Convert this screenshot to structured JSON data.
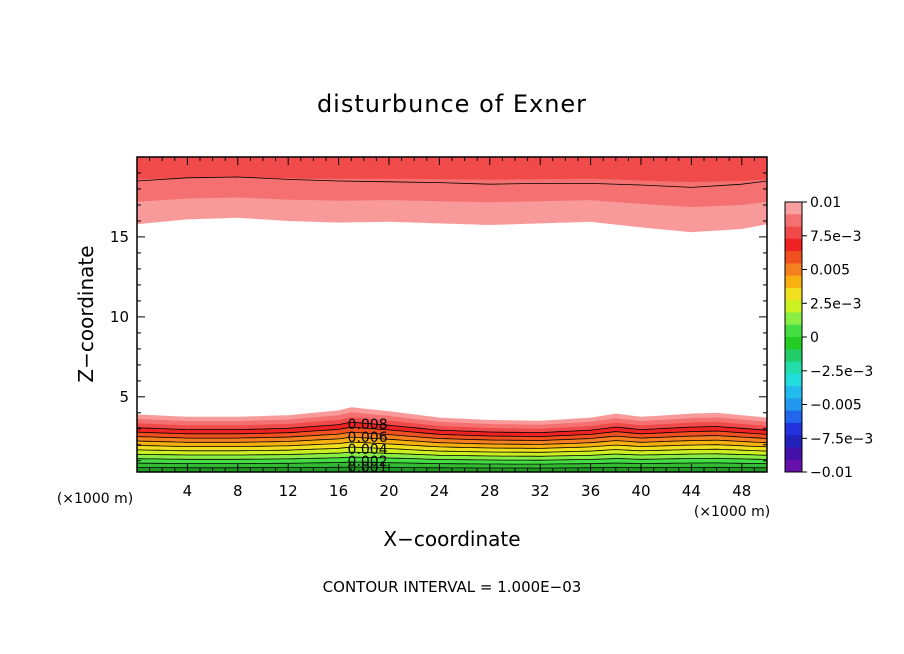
{
  "chart_data": {
    "type": "contour",
    "title": "disturbunce of Exner",
    "xlabel": "X−coordinate",
    "ylabel": "Z−coordinate",
    "x_unit": "(×1000 m)",
    "xlim": [
      0,
      50
    ],
    "ylim": [
      0.3,
      20
    ],
    "x_ticks": [
      4,
      8,
      12,
      16,
      20,
      24,
      28,
      32,
      36,
      40,
      44,
      48
    ],
    "y_ticks": [
      5,
      10,
      15
    ],
    "contour_interval_text": "CONTOUR INTERVAL = 1.000E−03",
    "contour_labels": [
      {
        "text": "0.008",
        "x": 18.3,
        "z": 3.3
      },
      {
        "text": "0.006",
        "x": 18.3,
        "z": 2.5
      },
      {
        "text": "0.004",
        "x": 18.3,
        "z": 1.75
      },
      {
        "text": "0.002",
        "x": 18.3,
        "z": 1.0
      },
      {
        "text": "0.001",
        "x": 18.3,
        "z": 0.6
      }
    ],
    "lower_layer": {
      "base_z": 0.3,
      "top_z_profile": {
        "x": [
          0,
          4,
          8,
          12,
          16,
          17,
          20,
          24,
          28,
          32,
          36,
          38,
          40,
          44,
          46,
          48,
          50
        ],
        "z": [
          3.9,
          3.75,
          3.75,
          3.85,
          4.15,
          4.35,
          4.1,
          3.7,
          3.55,
          3.5,
          3.7,
          3.95,
          3.75,
          3.95,
          4.0,
          3.85,
          3.7
        ]
      },
      "bands_bottom_to_top": [
        "#229922",
        "#33bb33",
        "#44dd44",
        "#88ee44",
        "#ccf022",
        "#f0e020",
        "#f8b010",
        "#f58020",
        "#f05020",
        "#ee2222",
        "#f04a4a",
        "#f57070",
        "#f89a9a"
      ]
    },
    "upper_layer": {
      "top_z": 20,
      "bottom_z_profile": {
        "x": [
          0,
          4,
          8,
          12,
          16,
          20,
          24,
          28,
          32,
          36,
          40,
          44,
          48,
          50
        ],
        "z": [
          15.8,
          16.1,
          16.2,
          16.0,
          15.9,
          15.95,
          15.85,
          15.75,
          15.85,
          15.95,
          15.6,
          15.3,
          15.5,
          15.8
        ]
      },
      "contour_profile": {
        "x": [
          0,
          4,
          8,
          12,
          16,
          20,
          24,
          28,
          32,
          36,
          40,
          44,
          48,
          50
        ],
        "z": [
          18.5,
          18.7,
          18.75,
          18.6,
          18.5,
          18.45,
          18.4,
          18.3,
          18.35,
          18.35,
          18.25,
          18.1,
          18.3,
          18.5
        ]
      },
      "bands_top_to_bottom": [
        "#f04a4a",
        "#f57070",
        "#f89a9a"
      ]
    },
    "colorbar": {
      "labels": [
        "0.01",
        "7.5e−3",
        "0.005",
        "2.5e−3",
        "0",
        "−2.5e−3",
        "−0.005",
        "−7.5e−3",
        "−0.01"
      ],
      "colors_top_to_bottom": [
        "#f8a0a0",
        "#f57070",
        "#f04a4a",
        "#ee2222",
        "#f05020",
        "#f58020",
        "#f8b010",
        "#f0e020",
        "#ccf022",
        "#88ee44",
        "#44dd44",
        "#22cc22",
        "#22cc66",
        "#22ddaa",
        "#22dddd",
        "#22bbee",
        "#2299ee",
        "#2266ee",
        "#2233dd",
        "#2222bb",
        "#4411aa",
        "#6611aa"
      ]
    }
  }
}
